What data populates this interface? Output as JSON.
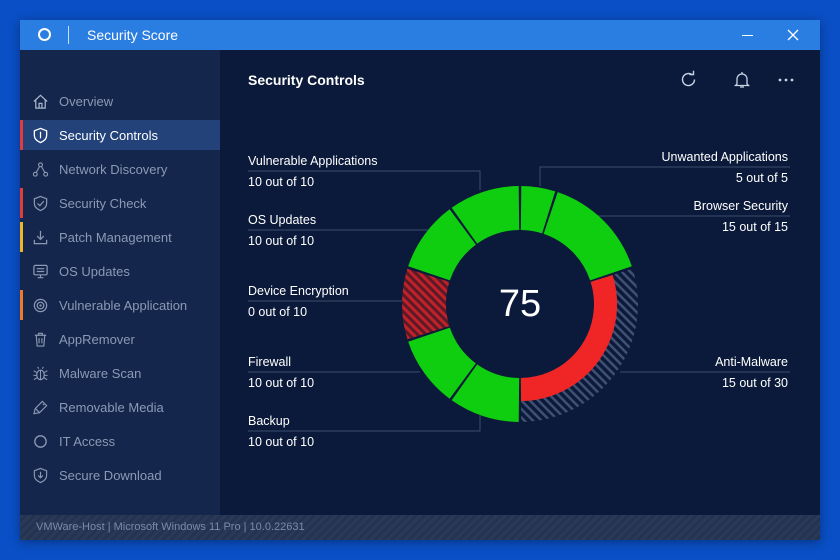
{
  "window": {
    "title": "Security Score"
  },
  "sidebar": {
    "items": [
      {
        "label": "Overview",
        "icon": "home-icon",
        "accent": null,
        "active": false
      },
      {
        "label": "Security Controls",
        "icon": "shield-icon",
        "accent": "#e23b3b",
        "active": true
      },
      {
        "label": "Network Discovery",
        "icon": "network-icon",
        "accent": null,
        "active": false
      },
      {
        "label": "Security Check",
        "icon": "shield-check-icon",
        "accent": "#e23b3b",
        "active": false
      },
      {
        "label": "Patch Management",
        "icon": "download-icon",
        "accent": "#f0b429",
        "active": false
      },
      {
        "label": "OS Updates",
        "icon": "monitor-icon",
        "accent": null,
        "active": false
      },
      {
        "label": "Vulnerable Application",
        "icon": "target-icon",
        "accent": "#f07a29",
        "active": false
      },
      {
        "label": "AppRemover",
        "icon": "trash-icon",
        "accent": null,
        "active": false
      },
      {
        "label": "Malware Scan",
        "icon": "bug-icon",
        "accent": null,
        "active": false
      },
      {
        "label": "Removable Media",
        "icon": "usb-icon",
        "accent": null,
        "active": false
      },
      {
        "label": "IT Access",
        "icon": "circle-icon",
        "accent": null,
        "active": false
      },
      {
        "label": "Secure Download",
        "icon": "secure-download-icon",
        "accent": null,
        "active": false
      }
    ]
  },
  "main": {
    "title": "Security Controls",
    "score": "75",
    "controls": {
      "vulnerable_applications": {
        "name": "Vulnerable Applications",
        "value": "10 out of 10",
        "score": 10,
        "max": 10
      },
      "os_updates": {
        "name": "OS Updates",
        "value": "10 out of 10",
        "score": 10,
        "max": 10
      },
      "device_encryption": {
        "name": "Device Encryption",
        "value": "0 out of 10",
        "score": 0,
        "max": 10
      },
      "firewall": {
        "name": "Firewall",
        "value": "10 out of 10",
        "score": 10,
        "max": 10
      },
      "backup": {
        "name": "Backup",
        "value": "10 out of 10",
        "score": 10,
        "max": 10
      },
      "unwanted_applications": {
        "name": "Unwanted Applications",
        "value": "5 out of 5",
        "score": 5,
        "max": 5
      },
      "browser_security": {
        "name": "Browser Security",
        "value": "15 out of 15",
        "score": 15,
        "max": 15
      },
      "anti_malware": {
        "name": "Anti-Malware",
        "value": "15 out of 30",
        "score": 15,
        "max": 30
      }
    }
  },
  "statusbar": {
    "text": "VMWare-Host  |  Microsoft Windows 11 Pro  |  10.0.22631"
  },
  "colors": {
    "good": "#0fcd0f",
    "bad": "#f02626",
    "missing": "#3a4a6c"
  }
}
